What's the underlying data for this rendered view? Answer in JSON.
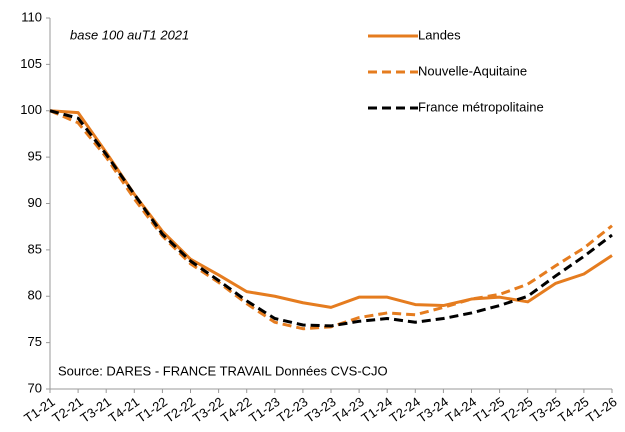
{
  "chart_data": {
    "type": "line",
    "annotations": [
      "base 100  auT1 2021",
      "Source: DARES - FRANCE TRAVAIL  Données CVS-CJO"
    ],
    "categories": [
      "T1-21",
      "T2-21",
      "T3-21",
      "T4-21",
      "T1-22",
      "T2-22",
      "T3-22",
      "T4-22",
      "T1-23",
      "T2-23",
      "T3-23",
      "T4-23",
      "T1-24",
      "T2-24",
      "T3-24",
      "T4-24",
      "T1-25",
      "T2-25",
      "T3-25",
      "T4-25",
      "T1-26"
    ],
    "series": [
      {
        "name": "Landes",
        "color": "#e57c1f",
        "dashed": false,
        "values": [
          100,
          99.8,
          95.5,
          91,
          87,
          84,
          82.3,
          80.5,
          80,
          79.3,
          78.8,
          79.9,
          79.9,
          79.1,
          79,
          79.7,
          79.9,
          79.4,
          81.4,
          82.4,
          84.4
        ]
      },
      {
        "name": "Nouvelle-Aquitaine",
        "color": "#e57c1f",
        "dashed": true,
        "values": [
          100,
          98.7,
          95,
          90.5,
          86.5,
          83.5,
          81.5,
          79.2,
          77.2,
          76.5,
          76.7,
          77.7,
          78.2,
          78,
          78.8,
          79.7,
          80.2,
          81.3,
          83.3,
          85.2,
          87.6
        ]
      },
      {
        "name": "France métropolitaine",
        "color": "#000000",
        "dashed": true,
        "values": [
          100,
          99.2,
          95.3,
          91,
          86.7,
          83.8,
          81.7,
          79.5,
          77.6,
          76.9,
          76.8,
          77.3,
          77.6,
          77.2,
          77.6,
          78.2,
          79,
          80,
          82.2,
          84.3,
          86.6
        ]
      }
    ],
    "ylim": [
      70,
      110
    ],
    "yticks": [
      70,
      75,
      80,
      85,
      90,
      95,
      100,
      105,
      110
    ],
    "grid": false
  }
}
